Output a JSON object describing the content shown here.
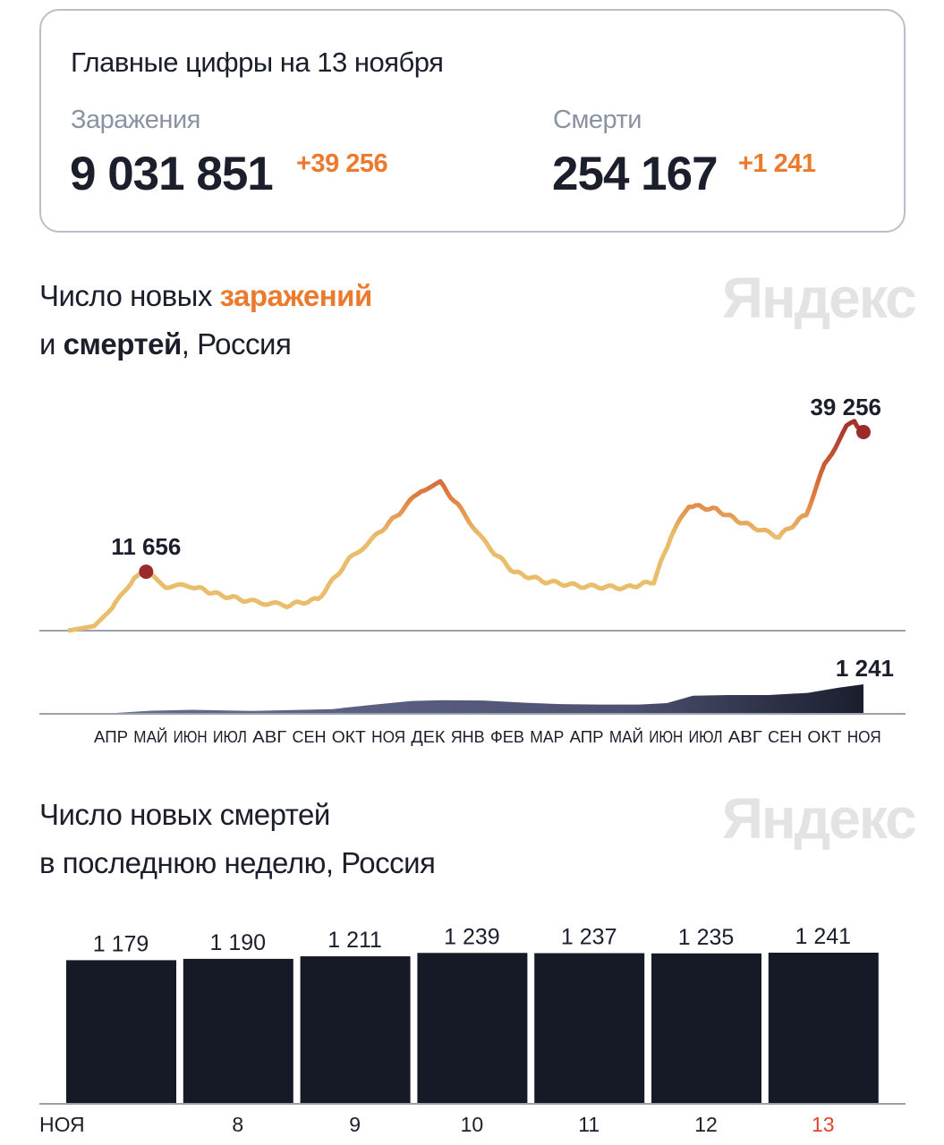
{
  "summary": {
    "title": "Главные цифры на 13 ноября",
    "infections_label": "Заражения",
    "infections_total": "9 031 851",
    "infections_delta": "+39 256",
    "deaths_label": "Смерти",
    "deaths_total": "254 167",
    "deaths_delta": "+1 241"
  },
  "chart1": {
    "title_part1": "Число новых ",
    "title_highlight": "заражений",
    "title_line2_part1": "и ",
    "title_bold": "смертей",
    "title_line2_part2": ", Россия",
    "logo": "Яндекс"
  },
  "chart2": {
    "title_line1": "Число новых смертей",
    "title_line2": "в последнюю неделю, Россия",
    "logo": "Яндекс"
  },
  "colors": {
    "accent": "#ec7a2e",
    "line_low": "#e9bd6c",
    "line_high": "#a3302a",
    "marker": "#9b2a2a",
    "deaths_area": "#5a5f80",
    "bars": "#161a26",
    "highlight_day": "#e0442c"
  },
  "chart_data": [
    {
      "type": "line",
      "title": "Число новых заражений и смертей, Россия",
      "x_tick_labels": [
        "АПР",
        "МАЙ",
        "ИЮН",
        "ИЮЛ",
        "АВГ",
        "СЕН",
        "ОКТ",
        "НОЯ",
        "ДЕК",
        "ЯНВ",
        "ФЕВ",
        "МАР",
        "АПР",
        "МАЙ",
        "ИЮН",
        "ИЮЛ",
        "АВГ",
        "СЕН",
        "ОКТ",
        "НОЯ"
      ],
      "x_range": [
        "2020-03-12",
        "2021-11-13"
      ],
      "series": [
        {
          "name": "заражений",
          "ylim": [
            0,
            40000
          ],
          "x": [
            "2020-03-12",
            "2020-04-01",
            "2020-04-15",
            "2020-05-02",
            "2020-05-11",
            "2020-05-26",
            "2020-06-15",
            "2020-07-06",
            "2020-07-30",
            "2020-08-27",
            "2020-09-20",
            "2020-10-14",
            "2020-11-03",
            "2020-11-24",
            "2020-12-08",
            "2020-12-23",
            "2021-01-08",
            "2021-01-28",
            "2021-02-18",
            "2021-03-14",
            "2021-04-10",
            "2021-05-15",
            "2021-06-05",
            "2021-06-18",
            "2021-07-02",
            "2021-07-23",
            "2021-08-13",
            "2021-09-09",
            "2021-09-30",
            "2021-10-14",
            "2021-10-31",
            "2021-11-06",
            "2021-11-13"
          ],
          "y": [
            0,
            900,
            4400,
            10600,
            11656,
            8800,
            8800,
            7100,
            5800,
            5000,
            6200,
            14100,
            18600,
            23900,
            27800,
            29200,
            23900,
            16800,
            11500,
            9700,
            8800,
            8500,
            9700,
            18600,
            24800,
            23900,
            21200,
            18600,
            23000,
            32700,
            40200,
            41300,
            39256
          ],
          "annotations": [
            {
              "x": "2020-05-11",
              "label": "11 656"
            },
            {
              "x": "2021-11-13",
              "label": "39 256"
            }
          ]
        },
        {
          "name": "смертей",
          "ylim": [
            0,
            1241
          ],
          "x": [
            "2020-03-12",
            "2020-04-15",
            "2020-05-15",
            "2020-06-15",
            "2020-08-01",
            "2020-10-01",
            "2020-11-01",
            "2020-12-01",
            "2020-12-25",
            "2021-01-25",
            "2021-02-25",
            "2021-03-25",
            "2021-04-25",
            "2021-05-25",
            "2021-06-15",
            "2021-07-05",
            "2021-08-01",
            "2021-09-01",
            "2021-10-01",
            "2021-10-25",
            "2021-11-13"
          ],
          "y": [
            0,
            30,
            130,
            170,
            120,
            200,
            380,
            540,
            570,
            560,
            470,
            410,
            390,
            390,
            450,
            760,
            790,
            790,
            880,
            1100,
            1241
          ],
          "annotations": [
            {
              "x": "2021-11-13",
              "label": "1 241"
            }
          ]
        }
      ]
    },
    {
      "type": "bar",
      "title": "Число новых смертей в последнюю неделю, Россия",
      "categories": [
        "7",
        "8",
        "9",
        "10",
        "11",
        "12",
        "13"
      ],
      "x_tick_labels": [
        "НОЯ",
        "8",
        "9",
        "10",
        "11",
        "12",
        "13"
      ],
      "values": [
        1179,
        1190,
        1211,
        1239,
        1237,
        1235,
        1241
      ],
      "value_labels": [
        "1 179",
        "1 190",
        "1 211",
        "1 239",
        "1 237",
        "1 235",
        "1 241"
      ],
      "ylim": [
        0,
        1241
      ]
    }
  ]
}
